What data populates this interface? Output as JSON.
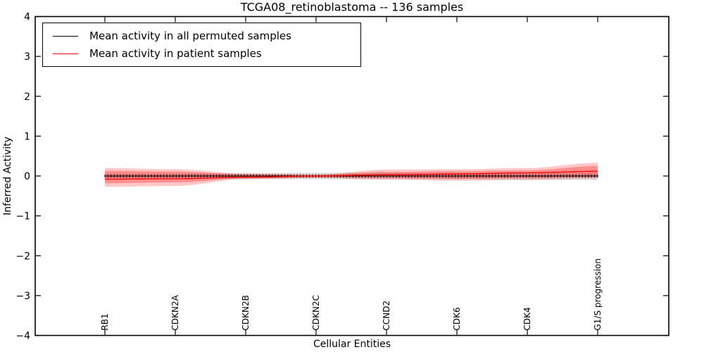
{
  "chart_data": {
    "type": "line",
    "title": "TCGA08_retinoblastoma -- 136 samples",
    "xlabel": "Cellular Entities",
    "ylabel": "Inferred Activity",
    "ylim": [
      -4,
      4
    ],
    "yticks": [
      -4,
      -3,
      -2,
      -1,
      0,
      1,
      2,
      3,
      4
    ],
    "grid": false,
    "legend_position": "upper left",
    "categories": [
      "RB1",
      "CDKN2A",
      "CDKN2B",
      "CDKN2C",
      "CCND2",
      "CDK6",
      "CDK4",
      "G1/S progression"
    ],
    "series": [
      {
        "name": "Mean activity in all permuted samples",
        "color": "#000000",
        "band_color": "#999999",
        "values": [
          0,
          0,
          0,
          0,
          0,
          0,
          0,
          0
        ],
        "band_upper": [
          0.06,
          0.06,
          0.07,
          0.08,
          0.08,
          0.08,
          0.09,
          0.1
        ],
        "band_lower": [
          -0.06,
          -0.06,
          -0.07,
          -0.08,
          -0.08,
          -0.08,
          -0.09,
          -0.1
        ]
      },
      {
        "name": "Mean activity in patient samples",
        "color": "#ff0000",
        "band_color": "#ff0000",
        "values": [
          -0.08,
          -0.07,
          -0.03,
          0.0,
          0.03,
          0.05,
          0.08,
          0.12
        ],
        "band_inner_upper": [
          0.13,
          0.11,
          0.04,
          0.02,
          0.1,
          0.12,
          0.14,
          0.25
        ],
        "band_inner_lower": [
          -0.18,
          -0.16,
          -0.06,
          -0.03,
          -0.05,
          -0.07,
          -0.05,
          -0.02
        ],
        "band_outer_upper": [
          0.2,
          0.17,
          0.06,
          0.04,
          0.16,
          0.17,
          0.2,
          0.33
        ],
        "band_outer_lower": [
          -0.27,
          -0.25,
          -0.08,
          -0.05,
          -0.09,
          -0.12,
          -0.1,
          -0.06
        ]
      }
    ]
  }
}
